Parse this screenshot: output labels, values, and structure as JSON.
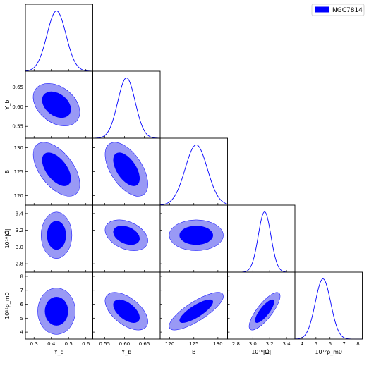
{
  "chart_data": {
    "type": "corner",
    "parameters": [
      {
        "label": "Υ_d",
        "ticks": [
          0.3,
          0.4,
          0.5,
          0.6
        ],
        "tick_labels": [
          "0.3",
          "0.4",
          "0.5",
          "0.6"
        ],
        "range": [
          0.25,
          0.64
        ],
        "mean": 0.43,
        "sd": 0.055
      },
      {
        "label": "Υ_b",
        "ticks": [
          0.55,
          0.6,
          0.65
        ],
        "tick_labels": [
          "0.55",
          "0.60",
          "0.65"
        ],
        "range": [
          0.52,
          0.69
        ],
        "mean": 0.605,
        "sd": 0.022
      },
      {
        "label": "B",
        "ticks": [
          120,
          125,
          130
        ],
        "tick_labels": [
          "120",
          "125",
          "130"
        ],
        "range": [
          118,
          132
        ],
        "mean": 125.5,
        "sd": 2.3
      },
      {
        "label": "10¹⁶|Ω̂|",
        "ticks": [
          2.8,
          3.0,
          3.2,
          3.4
        ],
        "tick_labels": [
          "2.8",
          "3.0",
          "3.2",
          "3.4"
        ],
        "range": [
          2.7,
          3.5
        ],
        "mean": 3.14,
        "sd": 0.075
      },
      {
        "label": "10¹²ρ_m0",
        "ticks": [
          4,
          5,
          6,
          7,
          8
        ],
        "tick_labels": [
          "4",
          "5",
          "6",
          "7",
          "8"
        ],
        "range": [
          3.5,
          8.3
        ],
        "mean": 5.5,
        "sd": 0.55
      }
    ],
    "correlations": [
      [
        1.0,
        -0.35,
        -0.55,
        0.0,
        0.0
      ],
      [
        -0.35,
        1.0,
        -0.55,
        -0.35,
        -0.55
      ],
      [
        -0.55,
        -0.55,
        1.0,
        0.0,
        0.8
      ],
      [
        0.0,
        -0.35,
        0.0,
        1.0,
        0.8
      ],
      [
        0.0,
        -0.55,
        0.8,
        0.8,
        1.0
      ]
    ],
    "contour_levels": [
      "68%",
      "95%"
    ],
    "legend": [
      {
        "name": "NGC7814",
        "color": "#0000ff"
      }
    ],
    "legend_position": "top-right",
    "colors": {
      "inner": "#0000ff",
      "outer": "#9999f5",
      "line": "#0000ff",
      "frame": "#000000"
    }
  }
}
